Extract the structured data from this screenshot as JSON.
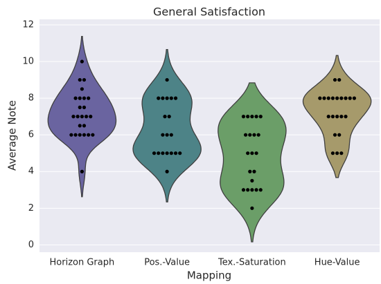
{
  "chart_data": {
    "type": "violin",
    "title": "General Satisfaction",
    "x_label": "Mapping",
    "y_label": "Average Note",
    "categories": [
      "Horizon Graph",
      "Pos.-Value",
      "Tex.-Saturation",
      "Hue-Value"
    ],
    "colors": [
      "#6a64a0",
      "#4d8387",
      "#6b9e68",
      "#a69a6b"
    ],
    "values": [
      [
        10,
        9,
        9,
        8.5,
        8,
        8,
        8,
        8,
        7.5,
        7.5,
        7,
        7,
        7,
        7,
        7,
        6.5,
        6.5,
        6,
        6,
        6,
        6,
        6,
        6,
        4
      ],
      [
        9,
        8,
        8,
        8,
        8,
        8,
        7,
        7,
        6,
        6,
        6,
        5,
        5,
        5,
        5,
        5,
        5,
        5,
        4
      ],
      [
        7,
        7,
        7,
        7,
        7,
        6,
        6,
        6,
        6,
        5,
        5,
        5,
        4,
        4,
        3.5,
        3,
        3,
        3,
        3,
        3,
        2
      ],
      [
        9,
        9,
        8,
        8,
        8,
        8,
        8,
        8,
        8,
        8,
        8,
        7,
        7,
        7,
        7,
        7,
        6,
        6,
        5,
        5,
        5
      ]
    ],
    "ylim": [
      -0.4,
      12.3
    ],
    "yticks": [
      0,
      2,
      4,
      6,
      8,
      10,
      12
    ],
    "grid": true
  }
}
